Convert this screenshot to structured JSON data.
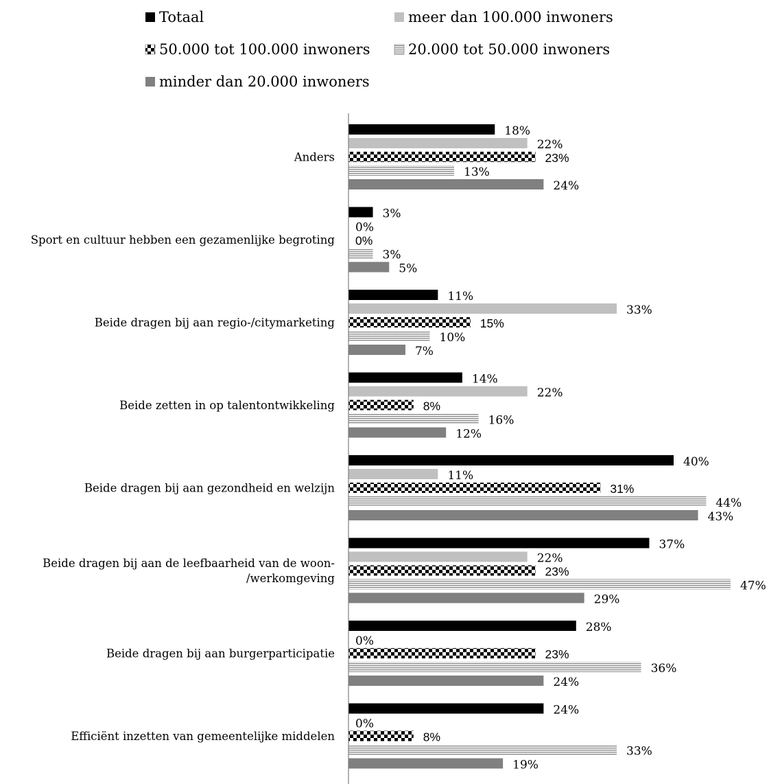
{
  "chart_data": {
    "type": "bar",
    "orientation": "horizontal",
    "categories": [
      "Anders",
      "Sport en cultuur hebben een gezamenlijke begroting",
      "Beide dragen bij aan regio-/citymarketing",
      "Beide zetten in op talentontwikkeling",
      "Beide dragen bij aan gezondheid en welzijn",
      "Beide dragen bij aan de leefbaarheid van de woon-/werkomgeving",
      "Beide dragen bij aan burgerparticipatie",
      "Efficiënt inzetten van gemeentelijke middelen"
    ],
    "category_lines": [
      [
        "Anders"
      ],
      [
        "Sport en cultuur hebben een gezamenlijke begroting"
      ],
      [
        "Beide dragen bij aan regio-/citymarketing"
      ],
      [
        "Beide zetten in op talentontwikkeling"
      ],
      [
        "Beide dragen bij aan gezondheid en welzijn"
      ],
      [
        "Beide dragen bij aan de leefbaarheid van de woon-",
        "/werkomgeving"
      ],
      [
        "Beide dragen bij aan burgerparticipatie"
      ],
      [
        "Efficiënt inzetten van gemeentelijke middelen"
      ]
    ],
    "series": [
      {
        "name": "Totaal",
        "pattern": "solid-black",
        "values": [
          18,
          3,
          11,
          14,
          40,
          37,
          28,
          24
        ]
      },
      {
        "name": "meer dan 100.000 inwoners",
        "pattern": "solid-lightgray",
        "values": [
          22,
          0,
          33,
          22,
          11,
          22,
          0,
          0
        ]
      },
      {
        "name": "50.000 tot 100.000 inwoners",
        "pattern": "checkerboard",
        "values": [
          23,
          0,
          15,
          8,
          31,
          23,
          23,
          8
        ]
      },
      {
        "name": "20.000 tot 50.000 inwoners",
        "pattern": "horizontal-stripes",
        "values": [
          13,
          3,
          10,
          16,
          44,
          47,
          36,
          33
        ]
      },
      {
        "name": "minder dan 20.000 inwoners",
        "pattern": "solid-darkgray",
        "values": [
          24,
          5,
          7,
          12,
          43,
          29,
          24,
          19
        ]
      }
    ],
    "value_suffix": "%",
    "xlim": [
      0,
      50
    ],
    "grid": false,
    "legend_position": "top",
    "colors": {
      "solid-black": "#000000",
      "solid-lightgray": "#c0c0c0",
      "solid-darkgray": "#808080",
      "pattern-ink": "#000000",
      "stripe-ink": "#8c8c8c"
    }
  }
}
